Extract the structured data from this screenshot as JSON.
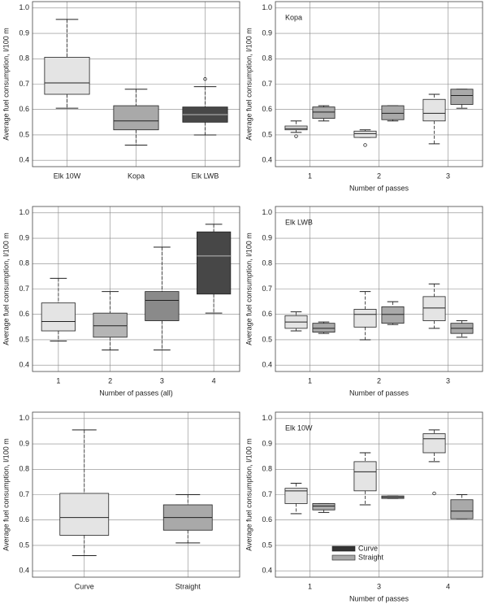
{
  "chart_data": [
    {
      "type": "box",
      "ylabel": "Average fuel consumption, l/100 m",
      "categories": [
        "Elk 10W",
        "Kopa",
        "Elk LWB"
      ],
      "colors": [
        "#e4e4e4",
        "#a9a9a9",
        "#474747"
      ],
      "boxes": [
        {
          "whislo": 0.605,
          "q1": 0.66,
          "med": 0.705,
          "q3": 0.806,
          "whishi": 0.955
        },
        {
          "whislo": 0.46,
          "q1": 0.52,
          "med": 0.555,
          "q3": 0.615,
          "whishi": 0.68
        },
        {
          "whislo": 0.5,
          "q1": 0.55,
          "med": 0.58,
          "q3": 0.61,
          "whishi": 0.69,
          "fliers": [
            0.72
          ]
        }
      ],
      "ylim": [
        0.375,
        1.025
      ],
      "yticks": [
        0.4,
        0.5,
        0.6,
        0.7,
        0.8,
        0.9,
        {
          "value": 1,
          "label": "1.0"
        }
      ],
      "grid": true
    },
    {
      "type": "grouped-box",
      "title": "Kopa",
      "xlabel": "Number of passes",
      "ylabel": "Average fuel consumption, l/100 m",
      "categories": [
        "1",
        "2",
        "3"
      ],
      "series": [
        {
          "color": "#e4e4e4",
          "boxes": [
            {
              "whislo": 0.51,
              "q1": 0.52,
              "med": 0.525,
              "q3": 0.535,
              "whishi": 0.555,
              "fliers": [
                0.495
              ]
            },
            {
              "whislo": 0.49,
              "q1": 0.49,
              "med": 0.505,
              "q3": 0.515,
              "whishi": 0.52,
              "fliers": [
                0.46
              ]
            },
            {
              "whislo": 0.465,
              "q1": 0.555,
              "med": 0.585,
              "q3": 0.64,
              "whishi": 0.66
            }
          ]
        },
        {
          "color": "#a9a9a9",
          "boxes": [
            {
              "whislo": 0.555,
              "q1": 0.565,
              "med": 0.59,
              "q3": 0.61,
              "whishi": 0.615
            },
            {
              "whislo": 0.555,
              "q1": 0.56,
              "med": 0.585,
              "q3": 0.615,
              "whishi": 0.615
            },
            {
              "whislo": 0.605,
              "q1": 0.62,
              "med": 0.655,
              "q3": 0.68,
              "whishi": 0.68
            }
          ]
        }
      ],
      "ylim": [
        0.375,
        1.025
      ],
      "yticks": [
        0.4,
        0.5,
        0.6,
        0.7,
        0.8,
        0.9,
        {
          "value": 1,
          "label": "1.0"
        }
      ],
      "grid": true
    },
    {
      "type": "box",
      "xlabel": "Number of passes (all)",
      "ylabel": "Average fuel consumption, l/100 m",
      "categories": [
        "1",
        "2",
        "3",
        "4"
      ],
      "colors": [
        "#e4e4e4",
        "#b5b5b5",
        "#8a8a8a",
        "#474747"
      ],
      "boxes": [
        {
          "whislo": 0.495,
          "q1": 0.535,
          "med": 0.572,
          "q3": 0.645,
          "whishi": 0.742
        },
        {
          "whislo": 0.46,
          "q1": 0.51,
          "med": 0.555,
          "q3": 0.605,
          "whishi": 0.69
        },
        {
          "whislo": 0.46,
          "q1": 0.575,
          "med": 0.655,
          "q3": 0.69,
          "whishi": 0.865
        },
        {
          "whislo": 0.605,
          "q1": 0.68,
          "med": 0.83,
          "q3": 0.925,
          "whishi": 0.955
        }
      ],
      "ylim": [
        0.375,
        1.025
      ],
      "yticks": [
        0.4,
        0.5,
        0.6,
        0.7,
        0.8,
        0.9,
        {
          "value": 1,
          "label": "1.0"
        }
      ],
      "grid": true
    },
    {
      "type": "grouped-box",
      "title": "Elk LWB",
      "xlabel": "Number of passes",
      "ylabel": "Average fuel consumption, l/100 m",
      "categories": [
        "1",
        "2",
        "3"
      ],
      "series": [
        {
          "color": "#e4e4e4",
          "boxes": [
            {
              "whislo": 0.535,
              "q1": 0.545,
              "med": 0.57,
              "q3": 0.595,
              "whishi": 0.61
            },
            {
              "whislo": 0.5,
              "q1": 0.55,
              "med": 0.6,
              "q3": 0.62,
              "whishi": 0.69
            },
            {
              "whislo": 0.545,
              "q1": 0.575,
              "med": 0.625,
              "q3": 0.67,
              "whishi": 0.72
            }
          ]
        },
        {
          "color": "#a9a9a9",
          "boxes": [
            {
              "whislo": 0.525,
              "q1": 0.53,
              "med": 0.545,
              "q3": 0.565,
              "whishi": 0.57
            },
            {
              "whislo": 0.56,
              "q1": 0.565,
              "med": 0.6,
              "q3": 0.63,
              "whishi": 0.65
            },
            {
              "whislo": 0.51,
              "q1": 0.525,
              "med": 0.545,
              "q3": 0.565,
              "whishi": 0.575
            }
          ]
        }
      ],
      "ylim": [
        0.375,
        1.025
      ],
      "yticks": [
        0.4,
        0.5,
        0.6,
        0.7,
        0.8,
        0.9,
        {
          "value": 1,
          "label": "1.0"
        }
      ],
      "grid": true
    },
    {
      "type": "box",
      "ylabel": "Average fuel consumption, l/100 m",
      "categories": [
        "Curve",
        "Straight"
      ],
      "colors": [
        "#e4e4e4",
        "#a9a9a9"
      ],
      "boxes": [
        {
          "whislo": 0.46,
          "q1": 0.54,
          "med": 0.61,
          "q3": 0.705,
          "whishi": 0.955
        },
        {
          "whislo": 0.51,
          "q1": 0.56,
          "med": 0.61,
          "q3": 0.66,
          "whishi": 0.7
        }
      ],
      "ylim": [
        0.375,
        1.025
      ],
      "yticks": [
        0.4,
        0.5,
        0.6,
        0.7,
        0.8,
        0.9,
        {
          "value": 1,
          "label": "1.0"
        }
      ],
      "grid": true
    },
    {
      "type": "grouped-box",
      "title": "Elk 10W",
      "xlabel": "Number of passes",
      "ylabel": "Average fuel consumption, l/100 m",
      "categories": [
        "1",
        "3",
        "4"
      ],
      "series": [
        {
          "color": "#e4e4e4",
          "boxes": [
            {
              "whislo": 0.625,
              "q1": 0.665,
              "med": 0.715,
              "q3": 0.725,
              "whishi": 0.745
            },
            {
              "whislo": 0.66,
              "q1": 0.715,
              "med": 0.79,
              "q3": 0.83,
              "whishi": 0.865
            },
            {
              "whislo": 0.83,
              "q1": 0.865,
              "med": 0.92,
              "q3": 0.94,
              "whishi": 0.955,
              "fliers": [
                0.705
              ]
            }
          ]
        },
        {
          "color": "#a9a9a9",
          "boxes": [
            {
              "whislo": 0.63,
              "q1": 0.64,
              "med": 0.655,
              "q3": 0.665,
              "whishi": 0.665
            },
            {
              "whislo": 0.685,
              "q1": 0.685,
              "med": 0.69,
              "q3": 0.695,
              "whishi": 0.695
            },
            {
              "whislo": 0.605,
              "q1": 0.605,
              "med": 0.635,
              "q3": 0.68,
              "whishi": 0.7
            }
          ]
        }
      ],
      "legend": {
        "position": "lower-left",
        "entries": [
          {
            "name": "Curve",
            "color": "#333333"
          },
          {
            "name": "Straight",
            "color": "#a9a9a9"
          }
        ]
      },
      "ylim": [
        0.375,
        1.025
      ],
      "yticks": [
        0.4,
        0.5,
        0.6,
        0.7,
        0.8,
        0.9,
        {
          "value": 1,
          "label": "1.0"
        }
      ],
      "grid": true
    }
  ]
}
